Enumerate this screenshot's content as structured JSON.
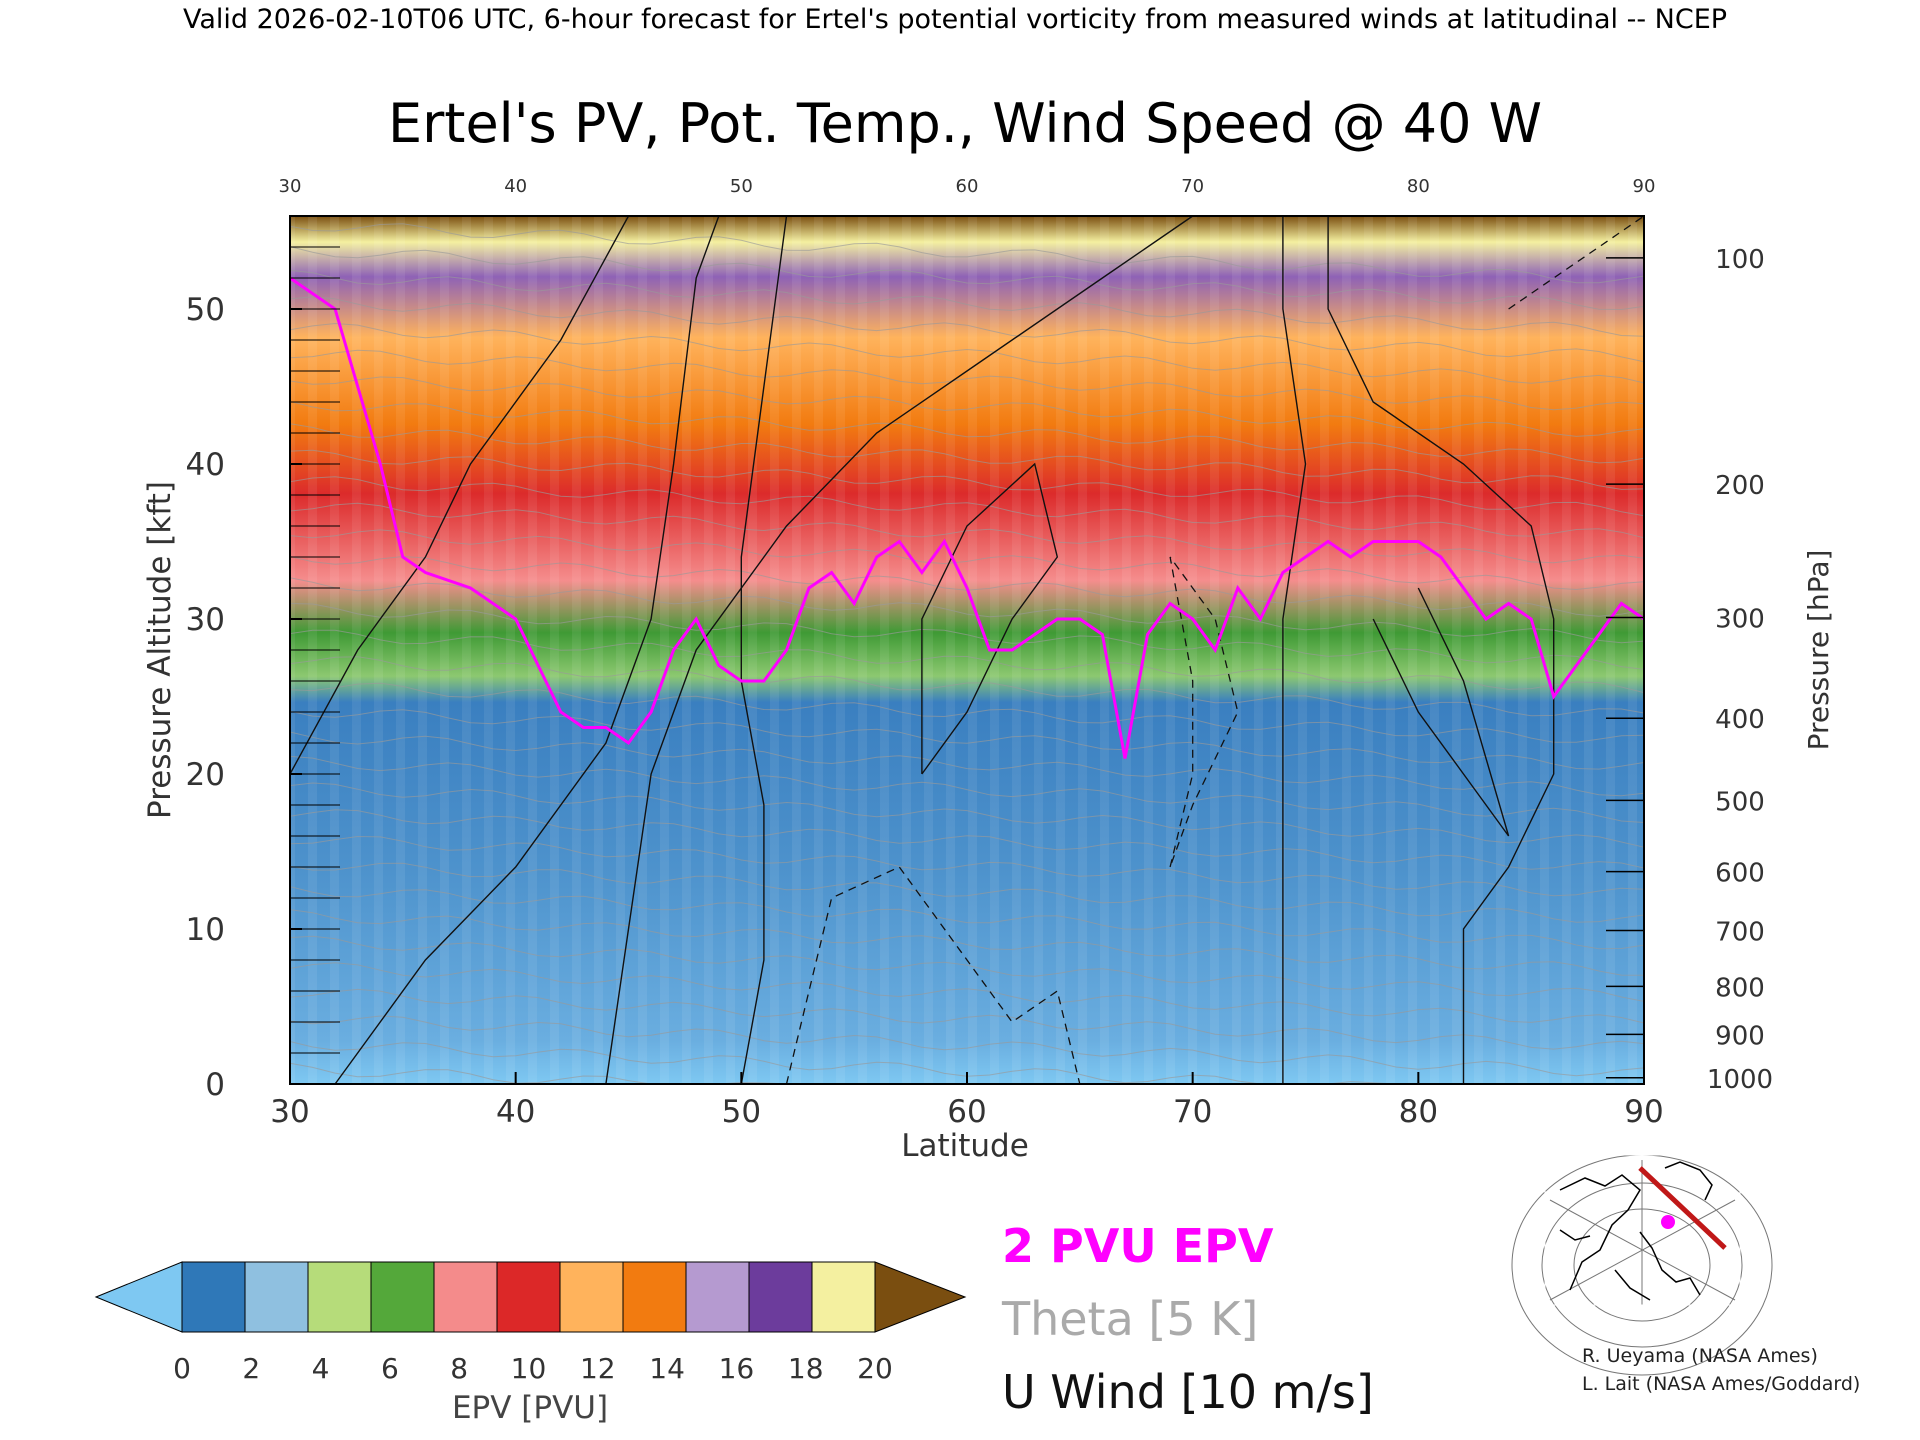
{
  "header": {
    "valid_line": "Valid 2026-02-10T06 UTC, 6-hour forecast for Ertel's potential vorticity from measured winds at latitudinal -- NCEP"
  },
  "chart_data": {
    "type": "heatmap",
    "title": "Ertel's PV, Pot. Temp., Wind Speed @ 40 W",
    "xlabel": "Latitude",
    "ylabel_left": "Pressure Altitude [kft]",
    "ylabel_right": "Pressure [hPa]",
    "xlim": [
      30,
      90
    ],
    "ylim_kft": [
      0,
      56
    ],
    "x_ticks": [
      "30",
      "40",
      "50",
      "60",
      "70",
      "80",
      "90"
    ],
    "y_ticks_left": [
      "0",
      "10",
      "20",
      "30",
      "40",
      "50"
    ],
    "y_ticks_right": [
      {
        "label": "100",
        "kft": 53.3
      },
      {
        "label": "200",
        "kft": 38.7
      },
      {
        "label": "300",
        "kft": 30.1
      },
      {
        "label": "400",
        "kft": 23.6
      },
      {
        "label": "500",
        "kft": 18.3
      },
      {
        "label": "600",
        "kft": 13.7
      },
      {
        "label": "700",
        "kft": 9.9
      },
      {
        "label": "800",
        "kft": 6.3
      },
      {
        "label": "900",
        "kft": 3.2
      },
      {
        "label": "1000",
        "kft": 0.4
      }
    ],
    "tropopause_2pvu_kft": {
      "lat": [
        30,
        32,
        34,
        35,
        36,
        38,
        40,
        41,
        42,
        43,
        44,
        45,
        46,
        47,
        48,
        49,
        50,
        51,
        52,
        53,
        54,
        55,
        56,
        57,
        58,
        59,
        60,
        61,
        62,
        63,
        64,
        65,
        66,
        67,
        68,
        69,
        70,
        71,
        72,
        73,
        74,
        75,
        76,
        77,
        78,
        79,
        80,
        81,
        82,
        83,
        84,
        85,
        86,
        87,
        88,
        89,
        90
      ],
      "kft": [
        52,
        50,
        40,
        34,
        33,
        32,
        30,
        27,
        24,
        23,
        23,
        22,
        24,
        28,
        30,
        27,
        26,
        26,
        28,
        32,
        33,
        31,
        34,
        35,
        33,
        35,
        32,
        28,
        28,
        29,
        30,
        30,
        29,
        21,
        29,
        31,
        30,
        28,
        32,
        30,
        33,
        34,
        35,
        34,
        35,
        35,
        35,
        34,
        32,
        30,
        31,
        30,
        25,
        27,
        29,
        31,
        30
      ]
    },
    "colorbar": {
      "label": "EPV [PVU]",
      "tick_labels": [
        "0",
        "2",
        "4",
        "6",
        "8",
        "10",
        "12",
        "14",
        "16",
        "18",
        "20"
      ],
      "colors": [
        "#2f78b8",
        "#8fc0e0",
        "#b6dc7a",
        "#54a83a",
        "#f48b8b",
        "#dc2828",
        "#ffb35c",
        "#f27b10",
        "#b59ad0",
        "#6c3c9c",
        "#f4f0a0"
      ],
      "under_color": "#7ec8f2",
      "over_color": "#7a4e10"
    },
    "legend": {
      "epv": "2 PVU EPV",
      "theta": "Theta [5 K]",
      "uwind": "U Wind [10 m/s]",
      "epv_color": "#ff00ff",
      "theta_color": "#aaaaaa"
    }
  },
  "credits": {
    "line1": "R. Ueyama (NASA Ames)",
    "line2": "L. Lait (NASA Ames/Goddard)"
  }
}
